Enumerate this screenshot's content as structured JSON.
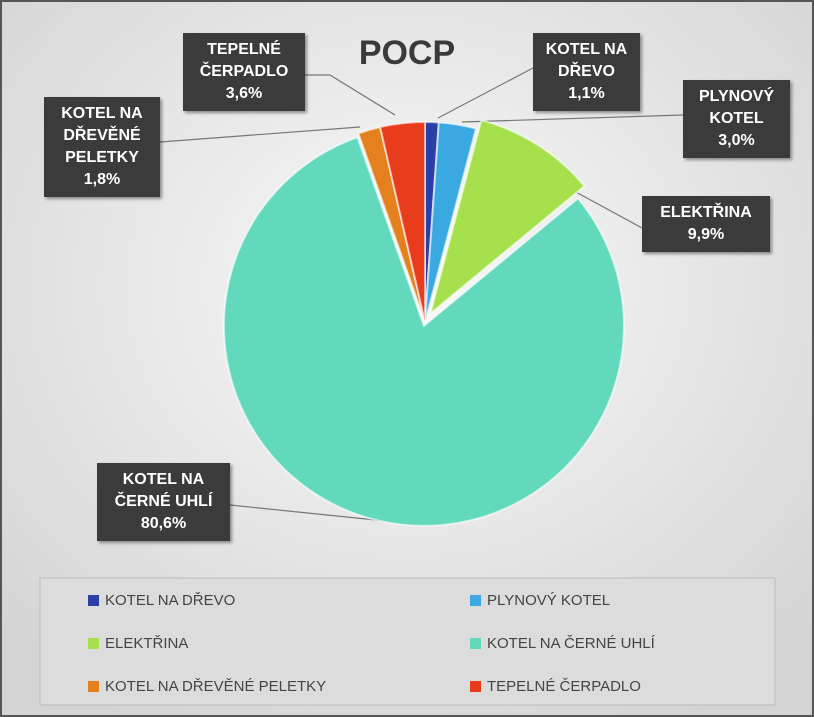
{
  "chart_data": {
    "type": "pie",
    "title": "POCP",
    "categories": [
      "KOTEL NA DŘEVO",
      "PLYNOVÝ KOTEL",
      "ELEKTŘINA",
      "KOTEL NA ČERNÉ UHLÍ",
      "KOTEL NA DŘEVĚNÉ PELETKY",
      "TEPELNÉ ČERPADLO"
    ],
    "values": [
      1.1,
      3.0,
      9.9,
      80.6,
      1.8,
      3.6
    ],
    "value_labels": [
      "1,1%",
      "3,0%",
      "9,9%",
      "80,6%",
      "1,8%",
      "3,6%"
    ],
    "colors": [
      "#2c3fa6",
      "#3aa9e2",
      "#a6e04c",
      "#62d8bd",
      "#e4801d",
      "#e83c1c"
    ],
    "legend": "bottom"
  }
}
